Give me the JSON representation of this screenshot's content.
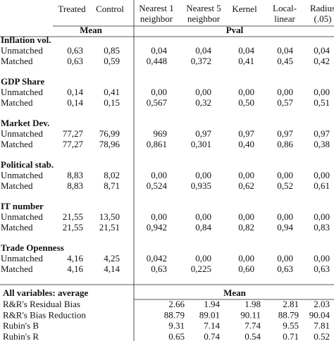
{
  "header": {
    "columns": [
      [
        "Treated"
      ],
      [
        "Control"
      ],
      [
        "Nearest 1",
        "neighbor"
      ],
      [
        "Nearest 5",
        "neighbor"
      ],
      [
        "Kernel"
      ],
      [
        "Local-",
        "linear"
      ],
      [
        "Radius",
        "(.05)"
      ]
    ],
    "mean_label": "Mean",
    "pval_label": "Pval"
  },
  "groups": [
    {
      "title": "Inflation vol.",
      "rows": [
        {
          "label": "Unmatched",
          "cells": [
            "0,63",
            "0,85",
            "0,04",
            "0,04",
            "0,04",
            "0,04",
            "0,04"
          ]
        },
        {
          "label": "Matched",
          "cells": [
            "0,63",
            "0,59",
            "0,448",
            "0,372",
            "0,41",
            "0,45",
            "0,42"
          ]
        }
      ]
    },
    {
      "title": "GDP Share",
      "rows": [
        {
          "label": "Unmatched",
          "cells": [
            "0,14",
            "0,41",
            "0,00",
            "0,00",
            "0,00",
            "0,00",
            "0,00"
          ]
        },
        {
          "label": "Matched",
          "cells": [
            "0,14",
            "0,15",
            "0,567",
            "0,32",
            "0,50",
            "0,57",
            "0,51"
          ]
        }
      ]
    },
    {
      "title": "Market Dev.",
      "rows": [
        {
          "label": "Unmatched",
          "cells": [
            "77,27",
            "76,99",
            "969",
            "0,97",
            "0,97",
            "0,97",
            "0,97"
          ]
        },
        {
          "label": "Matched",
          "cells": [
            "77,27",
            "78,96",
            "0,861",
            "0,301",
            "0,40",
            "0,86",
            "0,38"
          ]
        }
      ]
    },
    {
      "title": "Political stab.",
      "rows": [
        {
          "label": "Unmatched",
          "cells": [
            "8,83",
            "8,02",
            "0,00",
            "0,00",
            "0,00",
            "0,00",
            "0,00"
          ]
        },
        {
          "label": "Matched",
          "cells": [
            "8,83",
            "8,71",
            "0,524",
            "0,935",
            "0,62",
            "0,52",
            "0,61"
          ]
        }
      ]
    },
    {
      "title": "IT number",
      "rows": [
        {
          "label": "Unmatched",
          "cells": [
            "21,55",
            "13,50",
            "0,00",
            "0,00",
            "0,00",
            "0,00",
            "0,00"
          ]
        },
        {
          "label": "Matched",
          "cells": [
            "21,55",
            "21,51",
            "0,942",
            "0,84",
            "0,82",
            "0,94",
            "0,83"
          ]
        }
      ]
    },
    {
      "title": "Trade Openness",
      "rows": [
        {
          "label": "Unmatched",
          "cells": [
            "4,16",
            "4,25",
            "0,042",
            "0,00",
            "0,00",
            "0,00",
            "0,00"
          ]
        },
        {
          "label": "Matched",
          "cells": [
            "4,16",
            "4,14",
            "0,63",
            "0,225",
            "0,60",
            "0,63",
            "0,63"
          ]
        }
      ]
    }
  ],
  "summary": {
    "title": "All variables: average",
    "mean_label": "Mean",
    "rows": [
      {
        "label": "R&R's Residual Bias",
        "cells": [
          "2.66",
          "1.94",
          "1.98",
          "2.81",
          "2.03"
        ]
      },
      {
        "label": "R&R's Bias Reduction",
        "cells": [
          "88.79",
          "89.01",
          "90.11",
          "88.79",
          "90.04"
        ]
      },
      {
        "label": "Rubin's B",
        "cells": [
          "9.31",
          "7.14",
          "7.74",
          "9.55",
          "7.81"
        ]
      },
      {
        "label": "Rubin's R",
        "cells": [
          "0.65",
          "0.74",
          "0.54",
          "0.71",
          "0.52"
        ]
      }
    ]
  }
}
